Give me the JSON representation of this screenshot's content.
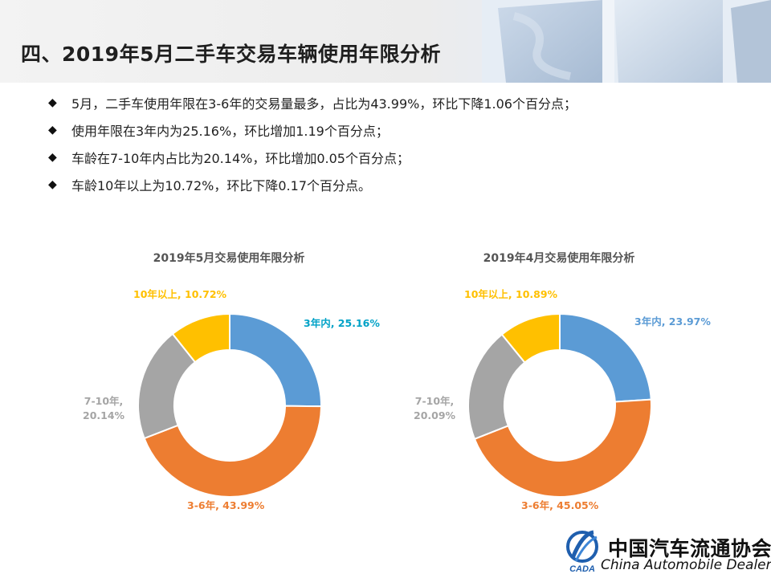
{
  "header": {
    "title": "四、2019年5月二手车交易车辆使用年限分析"
  },
  "bullets": [
    "5月，二手车使用年限在3-6年的交易量最多，占比为43.99%，环比下降1.06个百分点；",
    "使用年限在3年内为25.16%，环比增加1.19个百分点；",
    "车龄在7-10年内占比为20.14%，环比增加0.05个百分点；",
    "车龄10年以上为10.72%，环比下降0.17个百分点。"
  ],
  "bullet_marker": "◆",
  "chart_data": [
    {
      "type": "pie",
      "title": "2019年5月交易使用年限分析",
      "categories": [
        "3年内",
        "3-6年",
        "7-10年",
        "10年以上"
      ],
      "values": [
        25.16,
        43.99,
        20.14,
        10.72
      ],
      "labels": [
        "3年内, 25.16%",
        "3-6年, 43.99%",
        "7-10年, 20.14%",
        "10年以上, 10.72%"
      ],
      "colors": [
        "#5b9bd5",
        "#ed7d31",
        "#a5a5a5",
        "#ffc000"
      ],
      "label_colors": [
        "#00a2c7",
        "#ed7d31",
        "#a5a5a5",
        "#ffc000"
      ],
      "donut": true
    },
    {
      "type": "pie",
      "title": "2019年4月交易使用年限分析",
      "categories": [
        "3年内",
        "3-6年",
        "7-10年",
        "10年以上"
      ],
      "values": [
        23.97,
        45.05,
        20.09,
        10.89
      ],
      "labels": [
        "3年内, 23.97%",
        "3-6年, 45.05%",
        "7-10年, 20.09%",
        "10年以上, 10.89%"
      ],
      "colors": [
        "#5b9bd5",
        "#ed7d31",
        "#a5a5a5",
        "#ffc000"
      ],
      "label_colors": [
        "#5b9bd5",
        "#ed7d31",
        "#a5a5a5",
        "#ffc000"
      ],
      "donut": true
    }
  ],
  "footer": {
    "org_cn": "中国汽车流通协会",
    "org_en": "China Automobile Dealers",
    "logo_text": "CADA"
  }
}
